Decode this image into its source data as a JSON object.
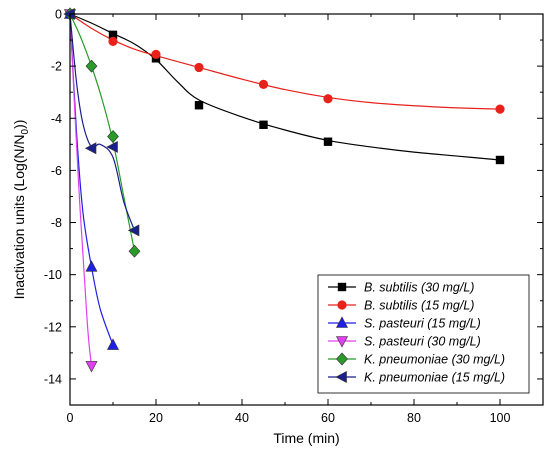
{
  "chart_data": {
    "type": "line",
    "xlabel": "Time (min)",
    "ylabel": {
      "main": "Inactivation units (Log(N/N",
      "sub": "0",
      "end": "))"
    },
    "xlim": [
      0,
      110
    ],
    "ylim": [
      -15,
      0
    ],
    "x_ticks": [
      0,
      20,
      40,
      60,
      80,
      100
    ],
    "y_ticks": [
      0,
      -2,
      -4,
      -6,
      -8,
      -10,
      -12,
      -14
    ],
    "grid": false,
    "legend_placement": "bottom-right",
    "series": [
      {
        "species": "B. subtilis",
        "dose": " (30 mg/L)",
        "color": "#000000",
        "marker": "square",
        "x": [
          0,
          10,
          20,
          30,
          45,
          60,
          100
        ],
        "y": [
          0,
          -0.8,
          -1.7,
          -3.5,
          -4.25,
          -4.9,
          -5.6
        ],
        "curve_x": [
          0,
          5,
          10,
          15,
          20,
          25,
          30,
          40,
          50,
          60,
          70,
          80,
          90,
          100
        ],
        "curve_y": [
          0,
          -0.35,
          -0.75,
          -1.15,
          -1.75,
          -2.6,
          -3.3,
          -3.95,
          -4.45,
          -4.85,
          -5.1,
          -5.3,
          -5.45,
          -5.6
        ]
      },
      {
        "species": "B. subtilis",
        "dose": " (15 mg/L)",
        "color": "#e8211a",
        "marker": "circle",
        "x": [
          0,
          10,
          20,
          30,
          45,
          60,
          100
        ],
        "y": [
          0,
          -1.05,
          -1.55,
          -2.05,
          -2.7,
          -3.25,
          -3.65
        ],
        "curve_x": [
          0,
          5,
          10,
          15,
          20,
          30,
          40,
          50,
          60,
          70,
          80,
          90,
          100
        ],
        "curve_y": [
          0,
          -0.55,
          -1.0,
          -1.35,
          -1.6,
          -2.05,
          -2.5,
          -2.9,
          -3.2,
          -3.4,
          -3.52,
          -3.6,
          -3.65
        ]
      },
      {
        "species": "S. pasteuri",
        "dose": " (15 mg/L)",
        "color": "#1f1fe6",
        "marker": "triangle-up",
        "x": [
          0,
          5,
          10
        ],
        "y": [
          0,
          -9.7,
          -12.7
        ],
        "curve_x": [
          0,
          1.5,
          3,
          5,
          7,
          10
        ],
        "curve_y": [
          0,
          -4.5,
          -7.6,
          -9.7,
          -11.3,
          -12.7
        ]
      },
      {
        "species": "S. pasteuri",
        "dose": " (30 mg/L)",
        "color": "#e040f0",
        "marker": "triangle-down",
        "x": [
          0,
          5
        ],
        "y": [
          0,
          -13.5
        ],
        "curve_x": [
          0,
          2,
          4,
          5
        ],
        "curve_y": [
          0,
          -6.5,
          -11.8,
          -13.5
        ]
      },
      {
        "species": "K. pneumoniae",
        "dose": " (30 mg/L)",
        "color": "#2a9a2a",
        "marker": "diamond",
        "x": [
          0,
          5,
          10,
          15
        ],
        "y": [
          0,
          -2.0,
          -4.7,
          -9.1
        ],
        "curve_x": [
          0,
          2.5,
          5,
          7.5,
          10,
          12.5,
          15
        ],
        "curve_y": [
          0,
          -0.9,
          -2.0,
          -3.3,
          -4.9,
          -7.0,
          -9.1
        ]
      },
      {
        "species": "K. pneumoniae",
        "dose": " (15 mg/L)",
        "color": "#1a1f8c",
        "marker": "triangle-left",
        "x": [
          0,
          5,
          10,
          15
        ],
        "y": [
          0,
          -5.15,
          -5.1,
          -8.3
        ],
        "curve_x": [
          0,
          1.5,
          3,
          5,
          7,
          10,
          12.5,
          15
        ],
        "curve_y": [
          0,
          -2.6,
          -4.2,
          -5.1,
          -5.0,
          -5.5,
          -7.2,
          -8.3
        ]
      }
    ]
  }
}
